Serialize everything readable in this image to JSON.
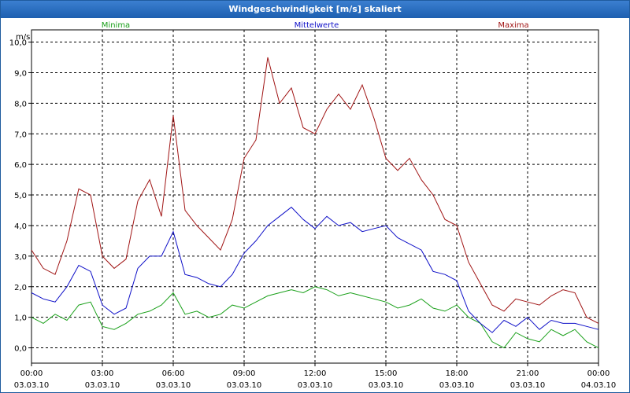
{
  "window": {
    "title": "Windgeschwindigkeit [m/s] skaliert"
  },
  "chart_data": {
    "type": "line",
    "title": "Windgeschwindigkeit [m/s] skaliert",
    "ylabel": "m/s",
    "xlabel": "",
    "ylim": [
      -0.5,
      10.4
    ],
    "xlim": [
      0,
      24
    ],
    "grid": true,
    "y_ticks": [
      "0,0",
      "1,0",
      "2,0",
      "3,0",
      "4,0",
      "5,0",
      "6,0",
      "7,0",
      "8,0",
      "9,0",
      "10,0"
    ],
    "y_tick_values": [
      0,
      1,
      2,
      3,
      4,
      5,
      6,
      7,
      8,
      9,
      10
    ],
    "x_ticks": [
      {
        "time": "00:00",
        "date": "03.03.10"
      },
      {
        "time": "03:00",
        "date": "03.03.10"
      },
      {
        "time": "06:00",
        "date": "03.03.10"
      },
      {
        "time": "09:00",
        "date": "03.03.10"
      },
      {
        "time": "12:00",
        "date": "03.03.10"
      },
      {
        "time": "15:00",
        "date": "03.03.10"
      },
      {
        "time": "18:00",
        "date": "03.03.10"
      },
      {
        "time": "21:00",
        "date": "03.03.10"
      },
      {
        "time": "00:00",
        "date": "04.03.10"
      }
    ],
    "x_tick_hours": [
      0,
      3,
      6,
      9,
      12,
      15,
      18,
      21,
      24
    ],
    "legend": [
      "Minima",
      "Mittelwerte",
      "Maxima"
    ],
    "x": [
      0,
      0.5,
      1,
      1.5,
      2,
      2.5,
      3,
      3.5,
      4,
      4.5,
      5,
      5.5,
      6,
      6.5,
      7,
      7.5,
      8,
      8.5,
      9,
      9.5,
      10,
      10.5,
      11,
      11.5,
      12,
      12.5,
      13,
      13.5,
      14,
      14.5,
      15,
      15.5,
      16,
      16.5,
      17,
      17.5,
      18,
      18.5,
      19,
      19.5,
      20,
      20.5,
      21,
      21.5,
      22,
      22.5,
      23,
      23.5,
      24
    ],
    "series": [
      {
        "name": "Minima",
        "color": "#1aa01a",
        "values": [
          1.0,
          0.8,
          1.1,
          0.9,
          1.4,
          1.5,
          0.7,
          0.6,
          0.8,
          1.1,
          1.2,
          1.4,
          1.8,
          1.1,
          1.2,
          1.0,
          1.1,
          1.4,
          1.3,
          1.5,
          1.7,
          1.8,
          1.9,
          1.8,
          2.0,
          1.9,
          1.7,
          1.8,
          1.7,
          1.6,
          1.5,
          1.3,
          1.4,
          1.6,
          1.3,
          1.2,
          1.4,
          1.0,
          0.8,
          0.2,
          0.0,
          0.5,
          0.3,
          0.2,
          0.6,
          0.4,
          0.6,
          0.2,
          0.0
        ]
      },
      {
        "name": "Mittelwerte",
        "color": "#0f10c8",
        "values": [
          1.8,
          1.6,
          1.5,
          2.0,
          2.7,
          2.5,
          1.4,
          1.1,
          1.3,
          2.6,
          3.0,
          3.0,
          3.8,
          2.4,
          2.3,
          2.1,
          2.0,
          2.4,
          3.1,
          3.5,
          4.0,
          4.3,
          4.6,
          4.2,
          3.9,
          4.3,
          4.0,
          4.1,
          3.8,
          3.9,
          4.0,
          3.6,
          3.4,
          3.2,
          2.5,
          2.4,
          2.2,
          1.2,
          0.8,
          0.5,
          0.9,
          0.7,
          1.0,
          0.6,
          0.9,
          0.8,
          0.8,
          0.7,
          0.6
        ]
      },
      {
        "name": "Maxima",
        "color": "#a01414",
        "values": [
          3.2,
          2.6,
          2.4,
          3.5,
          5.2,
          5.0,
          3.0,
          2.6,
          2.9,
          4.8,
          5.5,
          4.3,
          7.6,
          4.5,
          4.0,
          3.6,
          3.2,
          4.2,
          6.2,
          6.8,
          9.5,
          8.0,
          8.5,
          7.2,
          7.0,
          7.8,
          8.3,
          7.8,
          8.6,
          7.5,
          6.2,
          5.8,
          6.2,
          5.5,
          5.0,
          4.2,
          4.0,
          2.8,
          2.1,
          1.4,
          1.2,
          1.6,
          1.5,
          1.4,
          1.7,
          1.9,
          1.8,
          1.0,
          0.8
        ]
      }
    ]
  }
}
